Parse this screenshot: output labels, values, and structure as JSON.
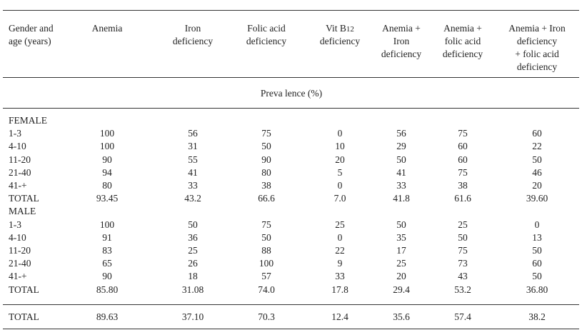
{
  "headers": [
    [
      "Gender and",
      "age (years)"
    ],
    [
      "Anemia"
    ],
    [
      "Iron",
      "deficiency"
    ],
    [
      "Folic acid",
      "deficiency"
    ],
    [
      "Vit B12",
      "deficiency"
    ],
    [
      "Anemia +",
      "Iron",
      "deficiency"
    ],
    [
      "Anemia +",
      "folic acid",
      "deficiency"
    ],
    [
      "Anemia + Iron",
      "deficiency",
      "+ folic acid",
      "deficiency"
    ]
  ],
  "subheader": "Preva lence (%)",
  "sections": [
    {
      "title": "FEMALE",
      "rows": [
        {
          "label": "1-3",
          "values": [
            "100",
            "56",
            "75",
            "0",
            "56",
            "75",
            "60"
          ]
        },
        {
          "label": "4-10",
          "values": [
            "100",
            "31",
            "50",
            "10",
            "29",
            "60",
            "22"
          ]
        },
        {
          "label": "11-20",
          "values": [
            "90",
            "55",
            "90",
            "20",
            "50",
            "60",
            "50"
          ]
        },
        {
          "label": "21-40",
          "values": [
            "94",
            "41",
            "80",
            "5",
            "41",
            "75",
            "46"
          ]
        },
        {
          "label": "41-+",
          "values": [
            "80",
            "33",
            "38",
            "0",
            "33",
            "38",
            "20"
          ]
        },
        {
          "label": "TOTAL",
          "values": [
            "93.45",
            "43.2",
            "66.6",
            "7.0",
            "41.8",
            "61.6",
            "39.60"
          ]
        }
      ]
    },
    {
      "title": "MALE",
      "rows": [
        {
          "label": "1-3",
          "values": [
            "100",
            "50",
            "75",
            "25",
            "50",
            "25",
            "0"
          ]
        },
        {
          "label": "4-10",
          "values": [
            "91",
            "36",
            "50",
            "0",
            "35",
            "50",
            "13"
          ]
        },
        {
          "label": "11-20",
          "values": [
            "83",
            "25",
            "88",
            "22",
            "17",
            "75",
            "50"
          ]
        },
        {
          "label": "21-40",
          "values": [
            "65",
            "26",
            "100",
            "9",
            "25",
            "73",
            "60"
          ]
        },
        {
          "label": "41-+",
          "values": [
            "90",
            "18",
            "57",
            "33",
            "20",
            "43",
            "50"
          ]
        },
        {
          "label": "TOTAL",
          "values": [
            "85.80",
            "31.08",
            "74.0",
            "17.8",
            "29.4",
            "53.2",
            "36.80"
          ]
        }
      ]
    }
  ],
  "grand_total": {
    "label": "TOTAL",
    "values": [
      "89.63",
      "37.10",
      "70.3",
      "12.4",
      "35.6",
      "57.4",
      "38.2"
    ]
  }
}
